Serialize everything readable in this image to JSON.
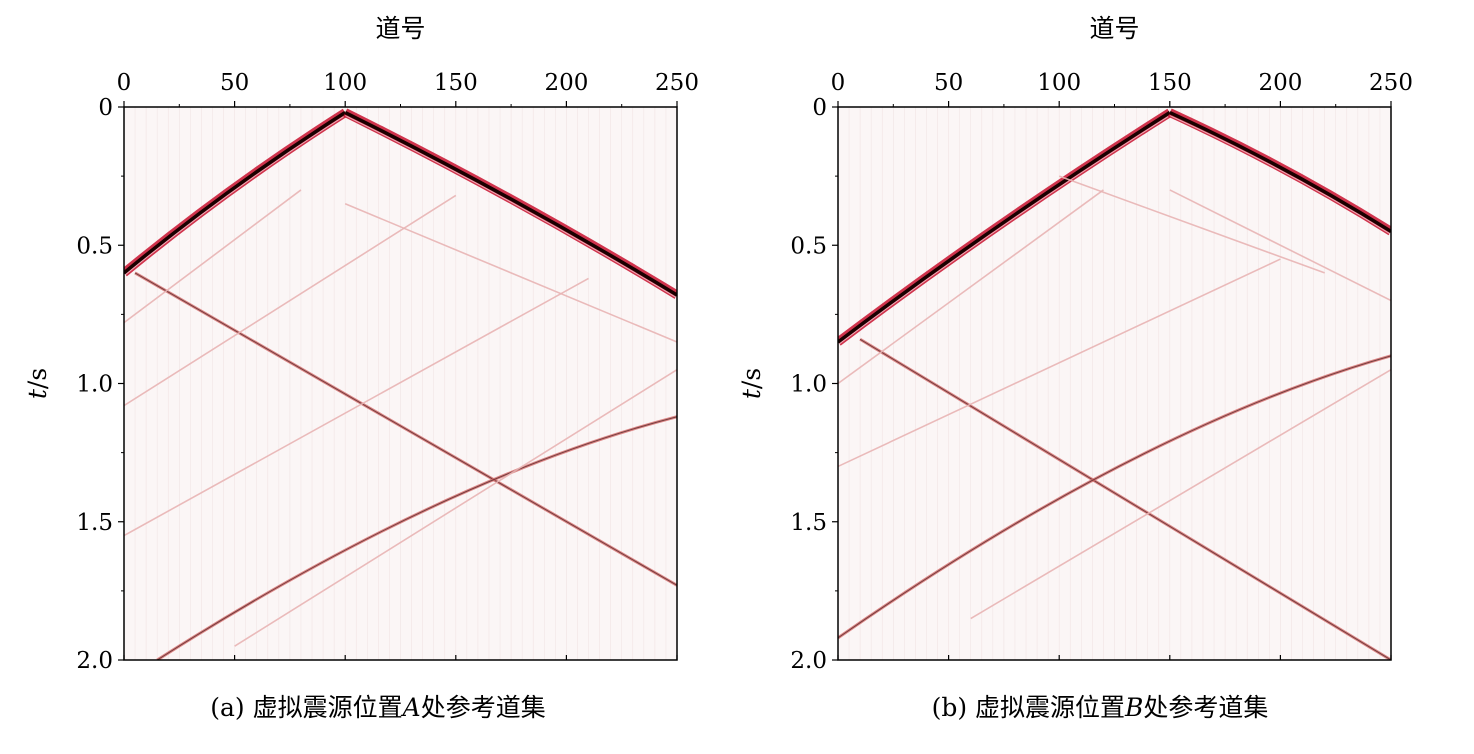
{
  "colors": {
    "accent": "#c8102e",
    "wavefront": "#1a0000",
    "faint": "#e8b4b4"
  },
  "chart_data": [
    {
      "type": "heatmap",
      "panel_label": "(a)",
      "caption_text": "虚拟震源位置",
      "caption_italic": "A",
      "caption_suffix": "处参考道集",
      "xlabel": "道号",
      "ylabel_italic": "t",
      "ylabel_suffix": "/s",
      "xlim": [
        0,
        250
      ],
      "ylim": [
        0,
        2.0
      ],
      "y_inverted": true,
      "x_axis_position": "top",
      "x_ticks": [
        "0",
        "50",
        "100",
        "150",
        "200",
        "250"
      ],
      "y_ticks": [
        "0",
        "0.5",
        "1.0",
        "1.5",
        "2.0"
      ],
      "virtual_source_trace": 100,
      "grid": false,
      "events": [
        {
          "kind": "direct-left",
          "x": [
            0,
            100
          ],
          "t": [
            0.6,
            0.02
          ],
          "strength": "strong"
        },
        {
          "kind": "direct-right",
          "x": [
            100,
            250
          ],
          "t": [
            0.02,
            0.68
          ],
          "strength": "strong"
        },
        {
          "kind": "refl-down",
          "x": [
            5,
            250
          ],
          "t": [
            0.6,
            1.73
          ],
          "strength": "medium"
        },
        {
          "kind": "refl-up",
          "x": [
            15,
            250
          ],
          "t": [
            2.0,
            1.12
          ],
          "strength": "medium"
        },
        {
          "kind": "refl-faint",
          "x": [
            0,
            80
          ],
          "t": [
            0.78,
            0.3
          ],
          "strength": "faint"
        },
        {
          "kind": "refl-faint",
          "x": [
            0,
            150
          ],
          "t": [
            1.08,
            0.32
          ],
          "strength": "faint"
        },
        {
          "kind": "refl-faint",
          "x": [
            0,
            210
          ],
          "t": [
            1.55,
            0.62
          ],
          "strength": "faint"
        },
        {
          "kind": "refl-faint",
          "x": [
            50,
            250
          ],
          "t": [
            1.95,
            0.95
          ],
          "strength": "faint"
        },
        {
          "kind": "refl-faint",
          "x": [
            100,
            250
          ],
          "t": [
            0.35,
            0.85
          ],
          "strength": "faint"
        }
      ]
    },
    {
      "type": "heatmap",
      "panel_label": "(b)",
      "caption_text": "虚拟震源位置",
      "caption_italic": "B",
      "caption_suffix": "处参考道集",
      "xlabel": "道号",
      "ylabel_italic": "t",
      "ylabel_suffix": "/s",
      "xlim": [
        0,
        250
      ],
      "ylim": [
        0,
        2.0
      ],
      "y_inverted": true,
      "x_axis_position": "top",
      "x_ticks": [
        "0",
        "50",
        "100",
        "150",
        "200",
        "250"
      ],
      "y_ticks": [
        "0",
        "0.5",
        "1.0",
        "1.5",
        "2.0"
      ],
      "virtual_source_trace": 150,
      "grid": false,
      "events": [
        {
          "kind": "direct-left",
          "x": [
            0,
            150
          ],
          "t": [
            0.85,
            0.02
          ],
          "strength": "strong"
        },
        {
          "kind": "direct-right",
          "x": [
            150,
            250
          ],
          "t": [
            0.02,
            0.45
          ],
          "strength": "strong"
        },
        {
          "kind": "refl-down",
          "x": [
            10,
            250
          ],
          "t": [
            0.84,
            2.0
          ],
          "strength": "medium"
        },
        {
          "kind": "refl-up",
          "x": [
            0,
            250
          ],
          "t": [
            1.92,
            0.9
          ],
          "strength": "medium"
        },
        {
          "kind": "refl-faint",
          "x": [
            0,
            120
          ],
          "t": [
            1.0,
            0.3
          ],
          "strength": "faint"
        },
        {
          "kind": "refl-faint",
          "x": [
            0,
            200
          ],
          "t": [
            1.3,
            0.55
          ],
          "strength": "faint"
        },
        {
          "kind": "refl-faint",
          "x": [
            60,
            250
          ],
          "t": [
            1.85,
            0.95
          ],
          "strength": "faint"
        },
        {
          "kind": "refl-faint",
          "x": [
            150,
            250
          ],
          "t": [
            0.3,
            0.7
          ],
          "strength": "faint"
        },
        {
          "kind": "refl-faint",
          "x": [
            100,
            220
          ],
          "t": [
            0.25,
            0.6
          ],
          "strength": "faint"
        }
      ]
    }
  ]
}
